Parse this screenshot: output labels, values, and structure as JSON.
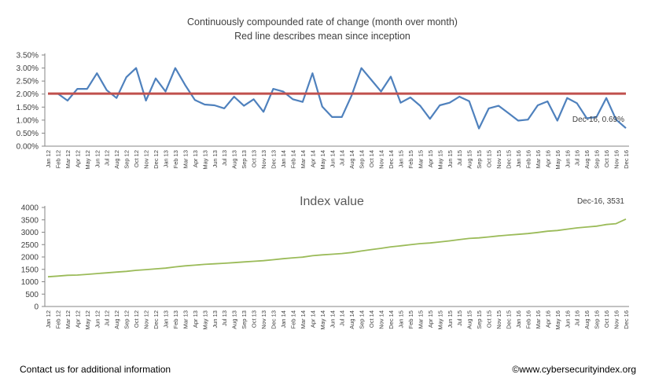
{
  "chart_data": [
    {
      "type": "line",
      "title": "Continuously compounded rate of change (month over month)",
      "subtitle": "Red line describes mean since inception",
      "categories": [
        "Jan 12",
        "Feb 12",
        "Mar 12",
        "Apr 12",
        "May 12",
        "Jun 12",
        "Jul 12",
        "Aug 12",
        "Sep 12",
        "Oct 12",
        "Nov 12",
        "Dec 12",
        "Jan 13",
        "Feb 13",
        "Mar 13",
        "Apr 13",
        "May 13",
        "Jun 13",
        "Jul 13",
        "Aug 13",
        "Sep 13",
        "Oct 13",
        "Nov 13",
        "Dec 13",
        "Jan 14",
        "Feb 14",
        "Mar 14",
        "Apr 14",
        "May 14",
        "Jun 14",
        "Jul 14",
        "Aug 14",
        "Sep 14",
        "Oct 14",
        "Nov 14",
        "Dec 14",
        "Jan 15",
        "Feb 15",
        "Mar 15",
        "Apr 15",
        "May 15",
        "Jun 15",
        "Jul 15",
        "Aug 15",
        "Sep 15",
        "Oct 15",
        "Nov 15",
        "Dec 15",
        "Jan 16",
        "Feb 16",
        "Mar 16",
        "Apr 16",
        "May 16",
        "Jun 16",
        "Jul 16",
        "Aug 16",
        "Sep 16",
        "Oct 16",
        "Nov 16",
        "Dec 16"
      ],
      "series": [
        {
          "color": "#4f81bd",
          "values": [
            2.02,
            2.02,
            1.75,
            2.2,
            2.2,
            2.8,
            2.15,
            1.85,
            2.65,
            3.0,
            1.75,
            2.6,
            2.1,
            3.0,
            2.35,
            1.77,
            1.6,
            1.57,
            1.45,
            1.9,
            1.55,
            1.8,
            1.32,
            2.2,
            2.1,
            1.8,
            1.7,
            2.8,
            1.52,
            1.12,
            1.12,
            1.95,
            3.0,
            2.55,
            2.1,
            2.67,
            1.67,
            1.87,
            1.55,
            1.05,
            1.57,
            1.67,
            1.9,
            1.73,
            0.68,
            1.45,
            1.55,
            1.27,
            0.98,
            1.02,
            1.57,
            1.72,
            0.98,
            1.85,
            1.65,
            1.07,
            1.12,
            1.85,
            1.02,
            0.69
          ]
        },
        {
          "color": "#c0504d",
          "values": [
            2.02,
            2.02,
            2.02,
            2.02,
            2.02,
            2.02,
            2.02,
            2.02,
            2.02,
            2.02,
            2.02,
            2.02,
            2.02,
            2.02,
            2.02,
            2.02,
            2.02,
            2.02,
            2.02,
            2.02,
            2.02,
            2.02,
            2.02,
            2.02,
            2.02,
            2.02,
            2.02,
            2.02,
            2.02,
            2.02,
            2.02,
            2.02,
            2.02,
            2.02,
            2.02,
            2.02,
            2.02,
            2.02,
            2.02,
            2.02,
            2.02,
            2.02,
            2.02,
            2.02,
            2.02,
            2.02,
            2.02,
            2.02,
            2.02,
            2.02,
            2.02,
            2.02,
            2.02,
            2.02,
            2.02,
            2.02,
            2.02,
            2.02,
            2.02,
            2.02
          ]
        }
      ],
      "y_ticks": [
        "0.00%",
        "0.50%",
        "1.00%",
        "1.50%",
        "2.00%",
        "2.50%",
        "3.00%",
        "3.50%"
      ],
      "ylim": [
        0,
        3.5
      ],
      "grid": false,
      "annotation": "Dec-16, 0.69%"
    },
    {
      "type": "line",
      "title": "Index value",
      "categories": [
        "Jan 12",
        "Feb 12",
        "Mar 12",
        "Apr 12",
        "May 12",
        "Jun 12",
        "Jul 12",
        "Aug 12",
        "Sep 12",
        "Oct 12",
        "Nov 12",
        "Dec 12",
        "Jan 13",
        "Feb 13",
        "Mar 13",
        "Apr 13",
        "May 13",
        "Jun 13",
        "Jul 13",
        "Aug 13",
        "Sep 13",
        "Oct 13",
        "Nov 13",
        "Dec 13",
        "Jan 14",
        "Feb 14",
        "Mar 14",
        "Apr 14",
        "May 14",
        "Jun 14",
        "Jul 14",
        "Aug 14",
        "Sep 14",
        "Oct 14",
        "Nov 14",
        "Dec 14",
        "Jan 15",
        "Feb 15",
        "Mar 15",
        "Apr 15",
        "May 15",
        "Jun 15",
        "Jul 15",
        "Aug 15",
        "Sep 15",
        "Oct 15",
        "Nov 15",
        "Dec 15",
        "Jan 16",
        "Feb 16",
        "Mar 16",
        "Apr 16",
        "May 16",
        "Jun 16",
        "Jul 16",
        "Aug 16",
        "Sep 16",
        "Oct 16",
        "Nov 16",
        "Dec 16"
      ],
      "series": [
        {
          "color": "#9bbb59",
          "values": [
            1200,
            1230,
            1260,
            1270,
            1300,
            1330,
            1360,
            1390,
            1420,
            1460,
            1490,
            1520,
            1550,
            1600,
            1640,
            1670,
            1700,
            1725,
            1745,
            1770,
            1800,
            1825,
            1850,
            1890,
            1930,
            1965,
            1995,
            2050,
            2085,
            2110,
            2140,
            2180,
            2240,
            2300,
            2350,
            2410,
            2450,
            2495,
            2540,
            2565,
            2605,
            2650,
            2700,
            2750,
            2770,
            2810,
            2850,
            2885,
            2915,
            2945,
            2990,
            3040,
            3070,
            3125,
            3175,
            3210,
            3245,
            3310,
            3345,
            3531
          ]
        }
      ],
      "y_ticks": [
        "0",
        "500",
        "1000",
        "1500",
        "2000",
        "2500",
        "3000",
        "3500",
        "4000"
      ],
      "ylim": [
        0,
        4000
      ],
      "grid": false,
      "annotation": "Dec-16, 3531"
    }
  ],
  "footer": {
    "left": "Contact us for additional information",
    "right": "©www.cybersecurityindex.org"
  }
}
